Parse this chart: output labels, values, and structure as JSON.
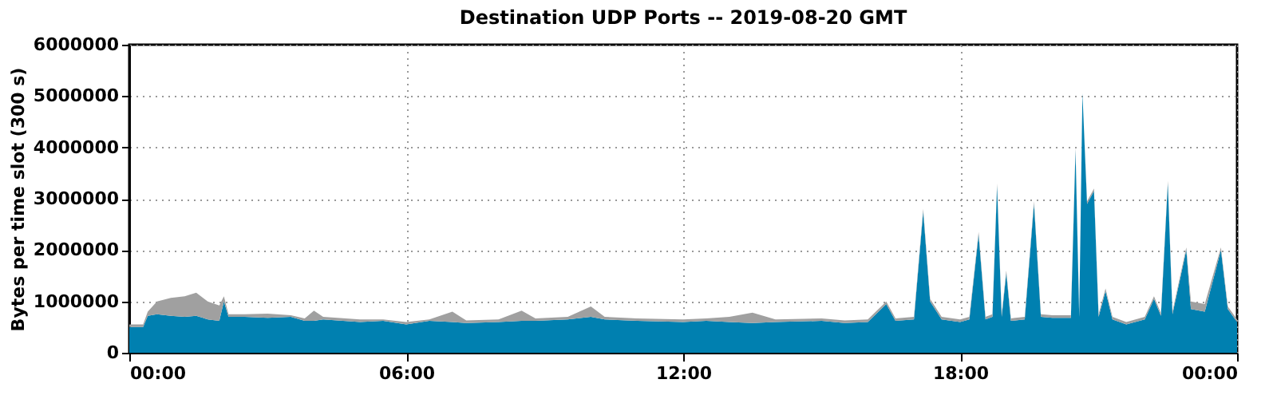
{
  "chart_data": {
    "type": "area",
    "stacked": true,
    "title": "Destination UDP Ports -- 2019-08-20 GMT",
    "ylabel": "Bytes per time slot (300 s)",
    "x": [
      0,
      0.3,
      0.4,
      0.6,
      0.9,
      1.2,
      1.45,
      1.7,
      1.95,
      2.05,
      2.15,
      2.5,
      3,
      3.5,
      3.8,
      4,
      4.2,
      5,
      5.5,
      6,
      6.5,
      7,
      7.3,
      8,
      8.5,
      8.8,
      9.5,
      10,
      10.3,
      11,
      12,
      12.5,
      13,
      13.5,
      14,
      15,
      15.5,
      16,
      16.4,
      16.6,
      17,
      17.2,
      17.35,
      17.6,
      18,
      18.2,
      18.4,
      18.55,
      18.7,
      18.8,
      18.9,
      19,
      19.1,
      19.4,
      19.6,
      19.75,
      20,
      20.4,
      20.5,
      20.58,
      20.65,
      20.75,
      20.9,
      21,
      21.15,
      21.3,
      21.6,
      22,
      22.2,
      22.35,
      22.5,
      22.6,
      22.9,
      23,
      23.3,
      23.65,
      23.8,
      24
    ],
    "series": [
      {
        "color": "#0080b0",
        "values": [
          500000,
          500000,
          720000,
          750000,
          720000,
          700000,
          720000,
          650000,
          620000,
          1000000,
          700000,
          700000,
          680000,
          700000,
          620000,
          620000,
          650000,
          600000,
          620000,
          550000,
          620000,
          600000,
          580000,
          600000,
          620000,
          620000,
          650000,
          700000,
          650000,
          620000,
          600000,
          620000,
          600000,
          580000,
          600000,
          620000,
          580000,
          600000,
          950000,
          620000,
          650000,
          2750000,
          1000000,
          650000,
          600000,
          650000,
          2300000,
          650000,
          700000,
          3250000,
          700000,
          1550000,
          620000,
          650000,
          2900000,
          700000,
          680000,
          680000,
          3950000,
          700000,
          5050000,
          2900000,
          3150000,
          700000,
          1200000,
          650000,
          550000,
          650000,
          1050000,
          720000,
          3300000,
          750000,
          2000000,
          850000,
          800000,
          2000000,
          850000,
          600000
        ]
      },
      {
        "color": "#a0a0a0",
        "values": [
          50000,
          50000,
          80000,
          250000,
          350000,
          400000,
          450000,
          350000,
          300000,
          100000,
          50000,
          50000,
          80000,
          30000,
          50000,
          200000,
          50000,
          50000,
          30000,
          50000,
          30000,
          200000,
          50000,
          50000,
          200000,
          50000,
          50000,
          200000,
          50000,
          50000,
          50000,
          50000,
          100000,
          200000,
          50000,
          50000,
          50000,
          50000,
          50000,
          50000,
          50000,
          50000,
          50000,
          50000,
          50000,
          50000,
          50000,
          50000,
          50000,
          50000,
          50000,
          50000,
          50000,
          50000,
          50000,
          50000,
          50000,
          50000,
          50000,
          50000,
          0,
          50000,
          50000,
          50000,
          50000,
          50000,
          50000,
          50000,
          50000,
          50000,
          50000,
          50000,
          50000,
          150000,
          150000,
          50000,
          50000,
          50000
        ]
      }
    ],
    "xlim": [
      0,
      24
    ],
    "xticks": [
      {
        "value": 0,
        "label": "00:00"
      },
      {
        "value": 6,
        "label": "06:00"
      },
      {
        "value": 12,
        "label": "12:00"
      },
      {
        "value": 18,
        "label": "18:00"
      },
      {
        "value": 24,
        "label": "00:00"
      }
    ],
    "ylim": [
      0,
      6000000
    ],
    "yticks": [
      0,
      1000000,
      2000000,
      3000000,
      4000000,
      5000000,
      6000000
    ],
    "grid": true
  }
}
